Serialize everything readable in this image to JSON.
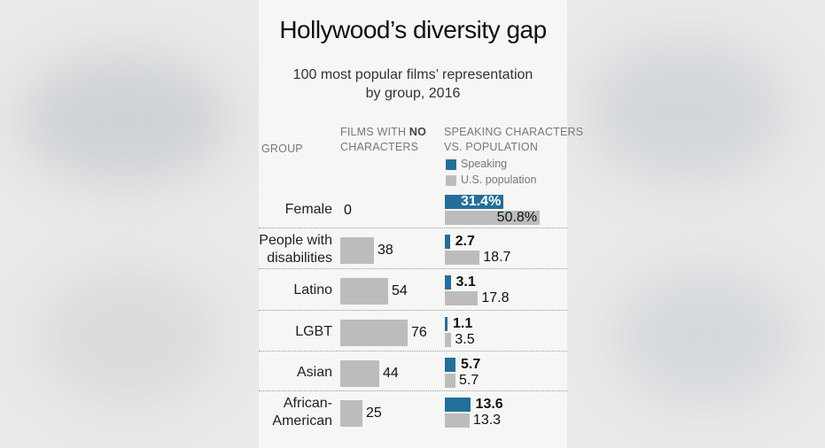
{
  "colors": {
    "speaking": "#236f9b",
    "population": "#bcbcbc",
    "films": "#bcbcbc"
  },
  "header": {
    "title": "Hollywood’s diversity gap",
    "subtitle_line1": "100 most popular films’ representation",
    "subtitle_line2": "by group, 2016"
  },
  "columns": {
    "group": "GROUP",
    "films_prefix": "FILMS WITH",
    "films_bold": "NO",
    "films_suffix": "CHARACTERS",
    "speaking_line1": "SPEAKING CHARACTERS",
    "speaking_line2": "VS. POPULATION"
  },
  "legend": {
    "speaking": "Speaking",
    "population": "U.S. population"
  },
  "chart_data": {
    "type": "bar",
    "title": "Hollywood’s diversity gap",
    "subtitle": "100 most popular films’ representation by group, 2016",
    "categories": [
      [
        "Female"
      ],
      [
        "People with",
        "disabilities"
      ],
      [
        "Latino"
      ],
      [
        "LGBT"
      ],
      [
        "Asian"
      ],
      [
        "African-",
        "American"
      ]
    ],
    "films_with_no_characters": [
      0,
      38,
      54,
      76,
      44,
      25
    ],
    "series": [
      {
        "name": "Speaking",
        "values": [
          31.4,
          2.7,
          3.1,
          1.1,
          5.7,
          13.6
        ],
        "labels": [
          "31.4%",
          "2.7",
          "3.1",
          "1.1",
          "5.7",
          "13.6"
        ]
      },
      {
        "name": "U.S. population",
        "values": [
          50.8,
          18.7,
          17.8,
          3.5,
          5.7,
          13.3
        ],
        "labels": [
          "50.8%",
          "18.7",
          "17.8",
          "3.5",
          "5.7",
          "13.3"
        ]
      }
    ]
  }
}
